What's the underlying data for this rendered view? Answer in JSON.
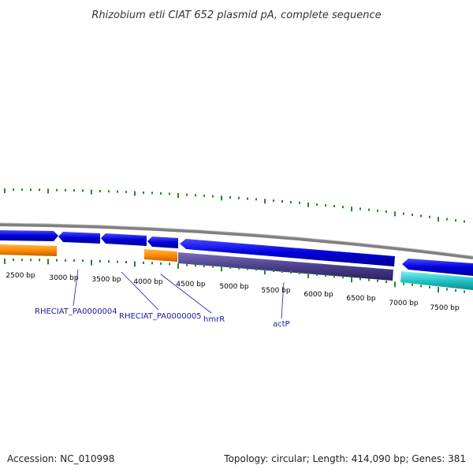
{
  "title": "Rhizobium etli CIAT 652 plasmid pA, complete sequence",
  "footer": {
    "accession": "Accession: NC_010998",
    "summary": "Topology: circular; Length: 414,090 bp; Genes: 381"
  },
  "scale_labels": [
    "2500 bp",
    "3000 bp",
    "3500 bp",
    "4000 bp",
    "4500 bp",
    "5000 bp",
    "5500 bp",
    "6000 bp",
    "6500 bp",
    "7000 bp",
    "7500 bp"
  ],
  "gene_labels": [
    "RHECIAT_PA0000004",
    "RHECIAT_PA0000005",
    "hmrR",
    "actP"
  ],
  "colors": {
    "backbone": "#808080",
    "cds_blue": "#0000dd",
    "orange": "#ff8c00",
    "purple": "#4b3f8c",
    "teal": "#22c4c8",
    "ticks": "#228b22",
    "labels": "#1a1aa6"
  }
}
